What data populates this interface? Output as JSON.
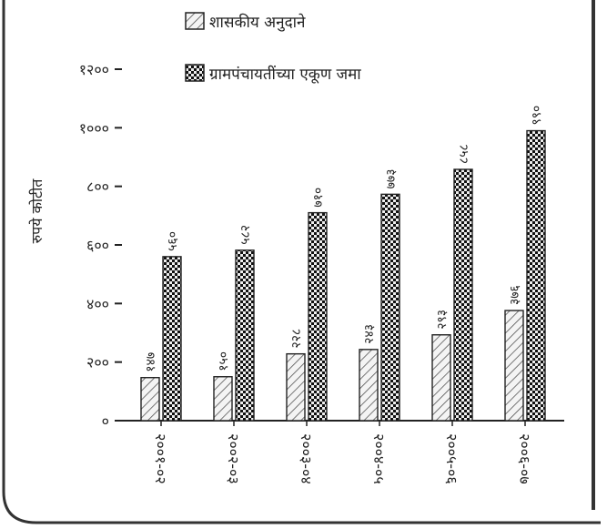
{
  "chart_data": {
    "type": "bar",
    "title": "",
    "xlabel": "",
    "ylabel": "रुपये कोटीत",
    "ylim": [
      0,
      1200
    ],
    "y_ticks": [
      "०",
      "२००",
      "४००",
      "६००",
      "८००",
      "१०००",
      "१२००"
    ],
    "y_tick_values": [
      0,
      200,
      400,
      600,
      800,
      1000,
      1200
    ],
    "categories": [
      "२००१-०२",
      "२००२-०३",
      "२००३-०४",
      "२००४-०५",
      "२००५-०६",
      "२००६-०७"
    ],
    "grid": false,
    "legend": "top",
    "series": [
      {
        "name": "शासकीय अनुदाने",
        "pattern": "hatch",
        "values": [
          147,
          150,
          228,
          243,
          293,
          376
        ],
        "labels": [
          "१४७",
          "१५०",
          "२२८",
          "२४३",
          "२९३",
          "३७६"
        ]
      },
      {
        "name": "ग्रामपंचायतींच्या एकूण जमा",
        "pattern": "checker",
        "values": [
          560,
          582,
          710,
          773,
          858,
          990
        ],
        "labels": [
          "५६०",
          "५८२",
          "७१०",
          "७७३",
          "८५८",
          "९९०"
        ]
      }
    ]
  },
  "colors": {
    "ink": "#222222",
    "paper": "#ffffff"
  }
}
